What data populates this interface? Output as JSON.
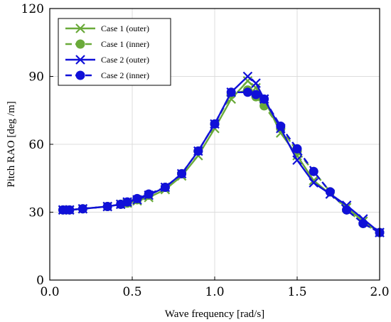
{
  "chart_data": {
    "type": "line",
    "title": "",
    "xlabel": "Wave frequency [rad/s]",
    "ylabel": "Pitch RAO [deg /m]",
    "xlim": [
      0.0,
      2.0
    ],
    "ylim": [
      0,
      120
    ],
    "xticks": [
      0.0,
      0.5,
      1.0,
      1.5,
      2.0
    ],
    "xtick_labels": [
      "0.0",
      "0.5",
      "1.0",
      "1.5",
      "2.0"
    ],
    "yticks": [
      0,
      30,
      60,
      90,
      120
    ],
    "ytick_labels": [
      "0",
      "30",
      "60",
      "90",
      "120"
    ],
    "grid": true,
    "legend_position": "top-left",
    "series": [
      {
        "name": "Case 1 (outer)",
        "color": "#6aaa3a",
        "line": "solid",
        "marker": "x",
        "x": [
          0.08,
          0.12,
          0.2,
          0.35,
          0.43,
          0.47,
          0.53,
          0.6,
          0.7,
          0.8,
          0.9,
          1.0,
          1.1,
          1.2,
          1.25,
          1.3,
          1.4,
          1.5,
          1.6,
          1.7,
          1.8,
          1.9,
          2.0
        ],
        "y": [
          31,
          31,
          31.5,
          32.5,
          33.5,
          34,
          35,
          36.5,
          40,
          46,
          55,
          67,
          80,
          88,
          85,
          80,
          65,
          55,
          44,
          38,
          32,
          26,
          21
        ]
      },
      {
        "name": "Case 1 (inner)",
        "color": "#6aaa3a",
        "line": "dashed",
        "marker": "circle",
        "x": [
          0.08,
          0.12,
          0.2,
          0.35,
          0.43,
          0.47,
          0.53,
          0.6,
          0.7,
          0.8,
          0.9,
          1.0,
          1.1,
          1.2,
          1.25,
          1.3,
          1.4,
          1.5,
          1.6,
          1.7,
          1.8,
          1.9,
          2.0
        ],
        "y": [
          31,
          31,
          31.5,
          32.5,
          33.5,
          34,
          35.5,
          37.5,
          41,
          47,
          57,
          69,
          82,
          84,
          81,
          77,
          67,
          57,
          48,
          39,
          31,
          25,
          21
        ]
      },
      {
        "name": "Case 2 (outer)",
        "color": "#1010d8",
        "line": "solid",
        "marker": "x",
        "x": [
          0.08,
          0.12,
          0.2,
          0.35,
          0.43,
          0.47,
          0.53,
          0.6,
          0.7,
          0.8,
          0.9,
          1.0,
          1.1,
          1.2,
          1.25,
          1.3,
          1.4,
          1.5,
          1.6,
          1.7,
          1.8,
          1.9,
          2.0
        ],
        "y": [
          31,
          31,
          31.5,
          32.5,
          33.5,
          34.5,
          35.5,
          37.5,
          41,
          47,
          57,
          69,
          83,
          90,
          87,
          80,
          67,
          53,
          43,
          38,
          33,
          27,
          21
        ]
      },
      {
        "name": "Case 2 (inner)",
        "color": "#1010d8",
        "line": "dashed",
        "marker": "circle",
        "x": [
          0.08,
          0.12,
          0.2,
          0.35,
          0.43,
          0.47,
          0.53,
          0.6,
          0.7,
          0.8,
          0.9,
          1.0,
          1.1,
          1.2,
          1.25,
          1.3,
          1.4,
          1.5,
          1.6,
          1.7,
          1.8,
          1.9,
          2.0
        ],
        "y": [
          31,
          31,
          31.5,
          32.5,
          33.5,
          34.5,
          36,
          38,
          41,
          47,
          57,
          69,
          83,
          83,
          82,
          80,
          68,
          58,
          48,
          39,
          31,
          25,
          21
        ]
      }
    ]
  }
}
